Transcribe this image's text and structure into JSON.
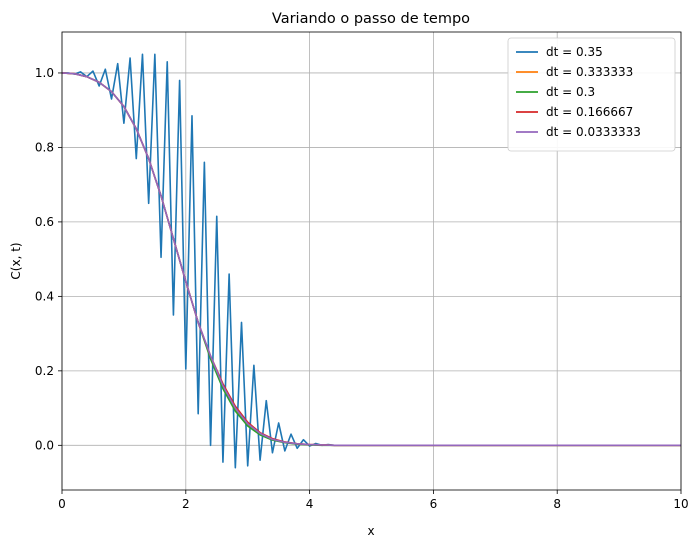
{
  "chart_data": {
    "type": "line",
    "title": "Variando o passo de tempo",
    "xlabel": "x",
    "ylabel": "C(x, t)",
    "xlim": [
      0,
      10
    ],
    "ylim": [
      -0.12,
      1.11
    ],
    "grid": true,
    "legend_position": "top-right",
    "xticks": [
      0,
      2,
      4,
      6,
      8,
      10
    ],
    "yticks": [
      0.0,
      0.2,
      0.4,
      0.6,
      0.8,
      1.0
    ],
    "xtick_labels": [
      "0",
      "2",
      "4",
      "6",
      "8",
      "10"
    ],
    "ytick_labels": [
      "0.0",
      "0.2",
      "0.4",
      "0.6",
      "0.8",
      "1.0"
    ],
    "series": [
      {
        "name": "dt = 0.35",
        "color": "#1f77b4",
        "x": [
          0.0,
          0.1,
          0.2,
          0.3,
          0.4,
          0.5,
          0.6,
          0.7,
          0.8,
          0.9,
          1.0,
          1.1,
          1.2,
          1.3,
          1.4,
          1.5,
          1.6,
          1.7,
          1.8,
          1.9,
          2.0,
          2.1,
          2.2,
          2.3,
          2.4,
          2.5,
          2.6,
          2.7,
          2.8,
          2.9,
          3.0,
          3.1,
          3.2,
          3.3,
          3.4,
          3.5,
          3.6,
          3.7,
          3.8,
          3.9,
          4.0,
          4.1,
          4.2,
          4.3,
          4.4,
          4.6,
          5.0,
          6.0,
          8.0,
          10.0
        ],
        "y": [
          1.0,
          1.0,
          0.997,
          1.003,
          0.99,
          1.005,
          0.965,
          1.01,
          0.93,
          1.025,
          0.865,
          1.04,
          0.77,
          1.05,
          0.65,
          1.05,
          0.505,
          1.03,
          0.35,
          0.98,
          0.205,
          0.885,
          0.085,
          0.76,
          0.0,
          0.615,
          -0.045,
          0.46,
          -0.06,
          0.33,
          -0.055,
          0.215,
          -0.04,
          0.12,
          -0.02,
          0.06,
          -0.015,
          0.03,
          -0.008,
          0.015,
          -0.002,
          0.005,
          0.0,
          0.002,
          0.0,
          0.0,
          0.0,
          0.0,
          0.0,
          0.0
        ]
      },
      {
        "name": "dt = 0.333333",
        "color": "#ff7f0e",
        "x": [
          0.0,
          0.2,
          0.4,
          0.6,
          0.8,
          1.0,
          1.2,
          1.4,
          1.6,
          1.8,
          2.0,
          2.2,
          2.4,
          2.6,
          2.8,
          3.0,
          3.2,
          3.4,
          3.6,
          3.8,
          4.0,
          4.2,
          4.4,
          4.6,
          5.0,
          6.0,
          8.0,
          10.0
        ],
        "y": [
          1.0,
          0.998,
          0.99,
          0.975,
          0.95,
          0.91,
          0.85,
          0.77,
          0.67,
          0.555,
          0.44,
          0.33,
          0.235,
          0.155,
          0.095,
          0.055,
          0.03,
          0.015,
          0.008,
          0.004,
          0.002,
          0.001,
          0.0,
          0.0,
          0.0,
          0.0,
          0.0,
          0.0
        ]
      },
      {
        "name": "dt = 0.3",
        "color": "#2ca02c",
        "x": [
          0.0,
          0.2,
          0.4,
          0.6,
          0.8,
          1.0,
          1.2,
          1.4,
          1.6,
          1.8,
          2.0,
          2.2,
          2.4,
          2.6,
          2.8,
          3.0,
          3.2,
          3.4,
          3.6,
          3.8,
          4.0,
          4.2,
          4.4,
          4.6,
          5.0,
          6.0,
          8.0,
          10.0
        ],
        "y": [
          1.0,
          0.998,
          0.99,
          0.975,
          0.95,
          0.91,
          0.85,
          0.77,
          0.67,
          0.555,
          0.44,
          0.33,
          0.232,
          0.152,
          0.092,
          0.052,
          0.028,
          0.014,
          0.007,
          0.003,
          0.001,
          0.0,
          0.0,
          0.0,
          0.0,
          0.0,
          0.0,
          0.0
        ]
      },
      {
        "name": "dt = 0.166667",
        "color": "#d62728",
        "x": [
          0.0,
          0.2,
          0.4,
          0.6,
          0.8,
          1.0,
          1.2,
          1.4,
          1.6,
          1.8,
          2.0,
          2.2,
          2.4,
          2.6,
          2.8,
          3.0,
          3.2,
          3.4,
          3.6,
          3.8,
          4.0,
          4.2,
          4.4,
          4.6,
          5.0,
          6.0,
          8.0,
          10.0
        ],
        "y": [
          1.0,
          0.998,
          0.99,
          0.975,
          0.95,
          0.91,
          0.85,
          0.77,
          0.67,
          0.555,
          0.44,
          0.33,
          0.24,
          0.165,
          0.105,
          0.062,
          0.034,
          0.018,
          0.009,
          0.004,
          0.002,
          0.001,
          0.0,
          0.0,
          0.0,
          0.0,
          0.0,
          0.0
        ]
      },
      {
        "name": "dt = 0.0333333",
        "color": "#9467bd",
        "x": [
          0.0,
          0.2,
          0.4,
          0.6,
          0.8,
          1.0,
          1.2,
          1.4,
          1.6,
          1.8,
          2.0,
          2.2,
          2.4,
          2.6,
          2.8,
          3.0,
          3.2,
          3.4,
          3.6,
          3.8,
          4.0,
          4.2,
          4.4,
          4.6,
          5.0,
          6.0,
          8.0,
          10.0
        ],
        "y": [
          1.0,
          0.998,
          0.99,
          0.975,
          0.95,
          0.91,
          0.85,
          0.77,
          0.67,
          0.555,
          0.44,
          0.33,
          0.24,
          0.16,
          0.1,
          0.058,
          0.032,
          0.016,
          0.008,
          0.004,
          0.002,
          0.001,
          0.0,
          0.0,
          0.0,
          0.0,
          0.0,
          0.0
        ]
      }
    ]
  }
}
